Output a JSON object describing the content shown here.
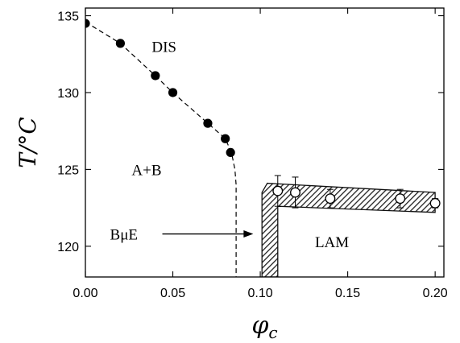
{
  "chart_data": {
    "type": "scatter",
    "title": "",
    "xlabel": "φ_c",
    "ylabel": "T/°C",
    "xlim": [
      0.0,
      0.205
    ],
    "ylim": [
      118,
      135.5
    ],
    "x_ticks": [
      0.0,
      0.05,
      0.1,
      0.15,
      0.2
    ],
    "x_tick_labels": [
      "0.00",
      "0.05",
      "0.10",
      "0.15",
      "0.20"
    ],
    "y_ticks": [
      120,
      125,
      130,
      135
    ],
    "y_tick_labels": [
      "120",
      "125",
      "130",
      "135"
    ],
    "grid": false,
    "series": [
      {
        "marker": "filled-circle",
        "points": [
          {
            "x": 0.0,
            "y": 134.5
          },
          {
            "x": 0.02,
            "y": 133.2
          },
          {
            "x": 0.04,
            "y": 131.1
          },
          {
            "x": 0.05,
            "y": 130.0
          },
          {
            "x": 0.07,
            "y": 128.0
          },
          {
            "x": 0.08,
            "y": 127.0
          },
          {
            "x": 0.083,
            "y": 126.1
          }
        ]
      },
      {
        "marker": "open-circle",
        "points": [
          {
            "x": 0.11,
            "y": 123.6,
            "err": 1.0
          },
          {
            "x": 0.12,
            "y": 123.5,
            "err": 1.0
          },
          {
            "x": 0.14,
            "y": 123.1,
            "err": 0.6
          },
          {
            "x": 0.18,
            "y": 123.1,
            "err": 0.6
          },
          {
            "x": 0.2,
            "y": 122.8,
            "err": 0.3
          }
        ]
      }
    ],
    "dashed_boundary": [
      {
        "x": 0.0,
        "y": 134.6
      },
      {
        "x": 0.02,
        "y": 133.2
      },
      {
        "x": 0.04,
        "y": 131.1
      },
      {
        "x": 0.05,
        "y": 130.0
      },
      {
        "x": 0.07,
        "y": 128.0
      },
      {
        "x": 0.08,
        "y": 127.0
      },
      {
        "x": 0.0835,
        "y": 126.1
      },
      {
        "x": 0.0855,
        "y": 125.0
      },
      {
        "x": 0.0862,
        "y": 124.0
      },
      {
        "x": 0.0862,
        "y": 118.0
      }
    ],
    "hatched_band": {
      "upper": [
        {
          "x": 0.101,
          "y": 118.0
        },
        {
          "x": 0.101,
          "y": 123.5
        },
        {
          "x": 0.104,
          "y": 124.1
        },
        {
          "x": 0.2,
          "y": 123.5
        }
      ],
      "lower": [
        {
          "x": 0.11,
          "y": 118.0
        },
        {
          "x": 0.11,
          "y": 122.6
        },
        {
          "x": 0.2,
          "y": 122.2
        }
      ]
    },
    "annotations": [
      {
        "text": "DIS",
        "x": 0.045,
        "y": 133.0
      },
      {
        "text": "A+B",
        "x": 0.035,
        "y": 125.0
      },
      {
        "text": "BμE",
        "x": 0.022,
        "y": 120.8
      },
      {
        "text": "LAM",
        "x": 0.141,
        "y": 120.3
      }
    ],
    "arrow": {
      "from": {
        "x": 0.044,
        "y": 120.8
      },
      "to": {
        "x": 0.096,
        "y": 120.8
      }
    }
  }
}
